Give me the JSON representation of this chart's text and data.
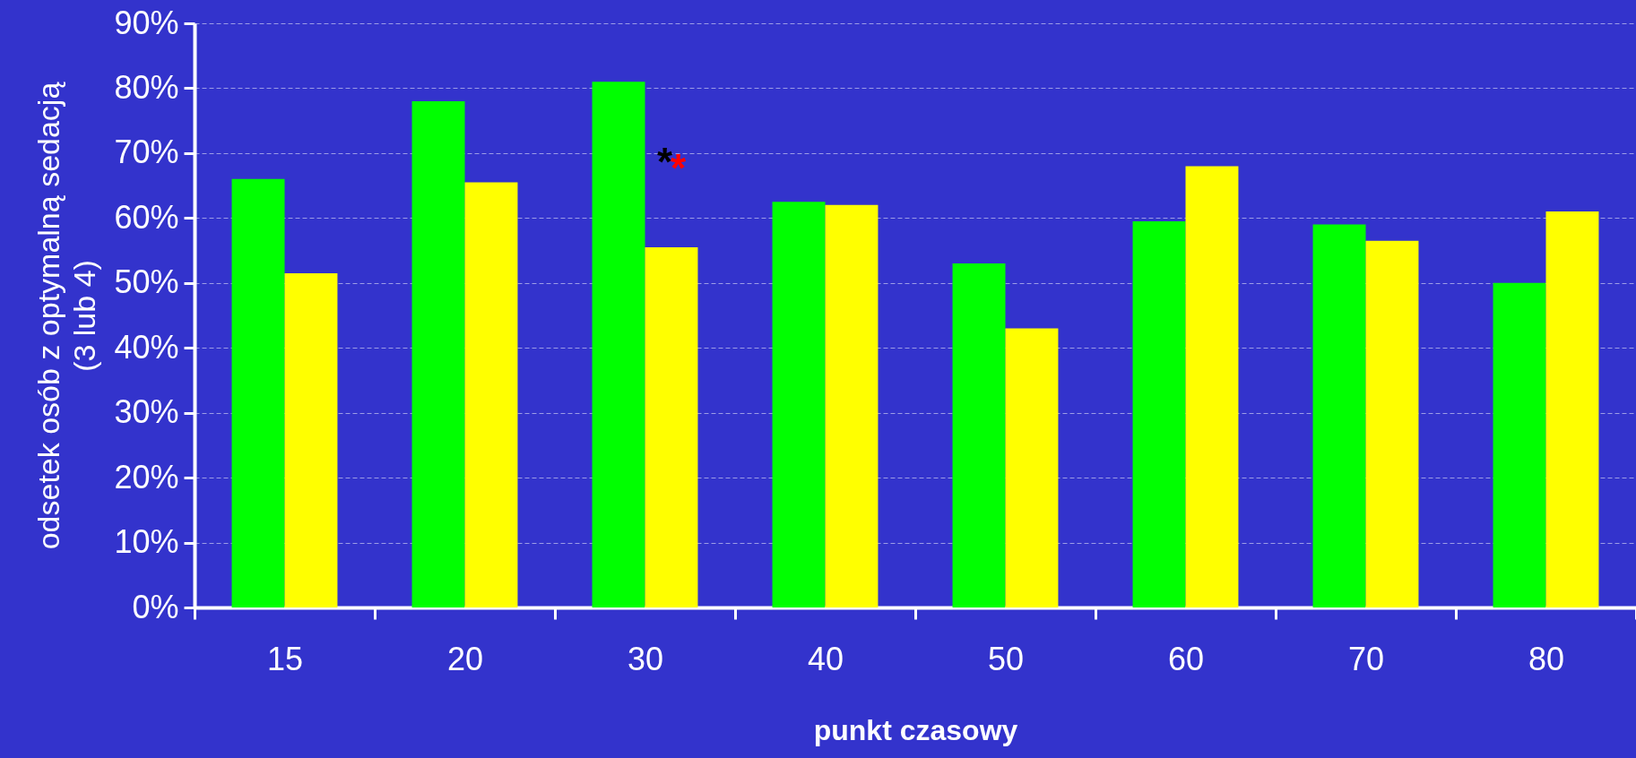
{
  "chart_data": {
    "type": "bar",
    "xlabel": "punkt czasowy",
    "ylabel": "odsetek osób z optymalną sedacją\n(3 lub 4)",
    "categories": [
      "15",
      "20",
      "30",
      "40",
      "50",
      "60",
      "70",
      "80"
    ],
    "series": [
      {
        "color": "#00ff00",
        "values": [
          66,
          78,
          81,
          62.5,
          53,
          59.5,
          59,
          50
        ]
      },
      {
        "color": "#ffff00",
        "values": [
          51.5,
          65.5,
          55.5,
          62,
          43,
          68,
          56.5,
          61
        ]
      }
    ],
    "ylim": [
      0,
      90
    ],
    "yticks": [
      {
        "value": 0,
        "label": "0%"
      },
      {
        "value": 10,
        "label": "10%"
      },
      {
        "value": 20,
        "label": "20%"
      },
      {
        "value": 30,
        "label": "30%"
      },
      {
        "value": 40,
        "label": "40%"
      },
      {
        "value": 50,
        "label": "50%"
      },
      {
        "value": 60,
        "label": "60%"
      },
      {
        "value": 70,
        "label": "70%"
      },
      {
        "value": 80,
        "label": "80%"
      },
      {
        "value": 90,
        "label": "90%"
      }
    ],
    "grid": "y",
    "annotations": [
      {
        "text": "*",
        "x": "30",
        "y": 70
      },
      {
        "text": "*",
        "x": "30",
        "y": 69
      }
    ]
  }
}
